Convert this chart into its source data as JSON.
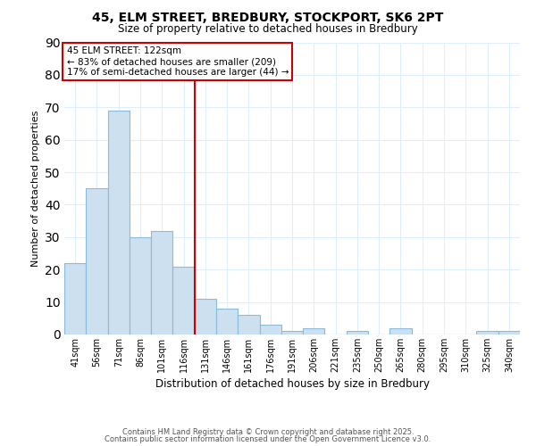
{
  "title1": "45, ELM STREET, BREDBURY, STOCKPORT, SK6 2PT",
  "title2": "Size of property relative to detached houses in Bredbury",
  "xlabel": "Distribution of detached houses by size in Bredbury",
  "ylabel": "Number of detached properties",
  "categories": [
    "41sqm",
    "56sqm",
    "71sqm",
    "86sqm",
    "101sqm",
    "116sqm",
    "131sqm",
    "146sqm",
    "161sqm",
    "176sqm",
    "191sqm",
    "206sqm",
    "221sqm",
    "235sqm",
    "250sqm",
    "265sqm",
    "280sqm",
    "295sqm",
    "310sqm",
    "325sqm",
    "340sqm"
  ],
  "values": [
    22,
    45,
    69,
    30,
    32,
    21,
    11,
    8,
    6,
    3,
    1,
    2,
    0,
    1,
    0,
    2,
    0,
    0,
    0,
    1,
    1
  ],
  "bar_color": "#cce0f0",
  "bar_edge_color": "#88bbdd",
  "vline_x": 6.0,
  "vline_color": "#cc0000",
  "annotation_line1": "45 ELM STREET: 122sqm",
  "annotation_line2": "← 83% of detached houses are smaller (209)",
  "annotation_line3": "17% of semi-detached houses are larger (44) →",
  "annotation_box_color": "#cc0000",
  "ylim": [
    0,
    90
  ],
  "yticks": [
    0,
    10,
    20,
    30,
    40,
    50,
    60,
    70,
    80,
    90
  ],
  "background_color": "#ffffff",
  "grid_color": "#ddeeff",
  "footer1": "Contains HM Land Registry data © Crown copyright and database right 2025.",
  "footer2": "Contains public sector information licensed under the Open Government Licence v3.0."
}
